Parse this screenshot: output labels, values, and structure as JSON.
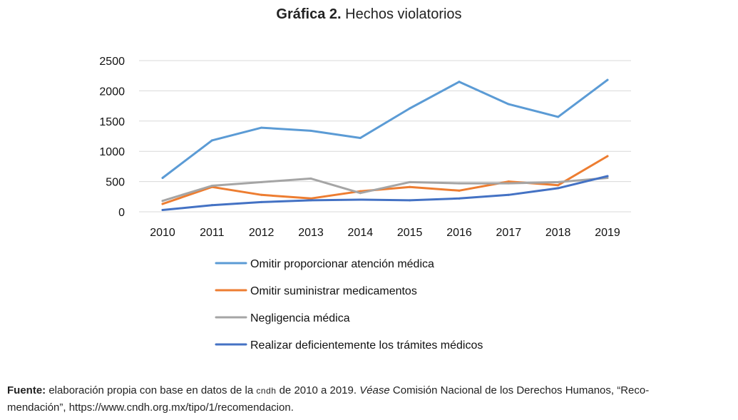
{
  "header": {
    "title_bold": "Gráfica 2.",
    "title_rest": " Hechos violatorios"
  },
  "chart_data": {
    "type": "line",
    "title": "Gráfica 2. Hechos violatorios",
    "xlabel": "",
    "ylabel": "",
    "x": [
      "2010",
      "2011",
      "2012",
      "2013",
      "2014",
      "2015",
      "2016",
      "2017",
      "2018",
      "2019"
    ],
    "yticks": [
      "0",
      "500",
      "1000",
      "1500",
      "2000",
      "2500"
    ],
    "ylim": [
      0,
      2500
    ],
    "grid": "horizontal",
    "legend_position": "bottom",
    "series": [
      {
        "name": "Omitir proporcionar atención médica",
        "color": "#5b9bd5",
        "values": [
          560,
          1180,
          1390,
          1340,
          1220,
          1710,
          2150,
          1780,
          1570,
          2180
        ]
      },
      {
        "name": "Omitir suministrar medicamentos",
        "color": "#ed7d31",
        "values": [
          130,
          410,
          280,
          220,
          340,
          410,
          350,
          500,
          440,
          920
        ]
      },
      {
        "name": "Negligencia médica",
        "color": "#a5a5a5",
        "values": [
          180,
          430,
          490,
          550,
          310,
          490,
          470,
          470,
          490,
          560
        ]
      },
      {
        "name": "Realizar deficientemente los trámites médicos",
        "color": "#4472c4",
        "values": [
          30,
          110,
          160,
          190,
          200,
          190,
          220,
          280,
          390,
          590
        ]
      }
    ]
  },
  "footnote": {
    "label": "Fuente:",
    "text1": " elaboración propia con base en datos de la ",
    "org": "cndh",
    "text2": " de 2010 a 2019. ",
    "vease": "Véase",
    "text3": " Comisión Nacional de los Derechos Humanos, “Reco-",
    "line2": "mendación”, https://www.cndh.org.mx/tipo/1/recomendacion."
  }
}
